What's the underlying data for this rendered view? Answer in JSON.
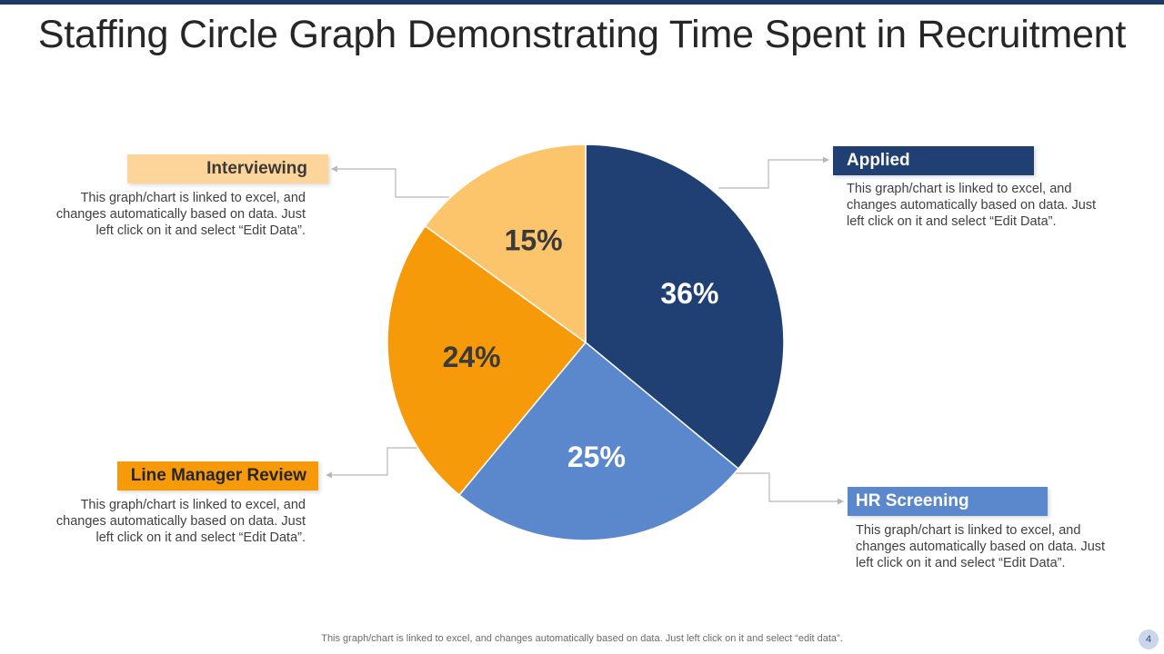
{
  "page": {
    "title": "Staffing Circle Graph Demonstrating Time Spent in Recruitment",
    "footer": "This graph/chart is linked to excel,  and changes automatically based on data. Just left click on it and select “edit data”.",
    "page_number": "4"
  },
  "colors": {
    "applied": "#203f73",
    "hr_screening": "#5b87cc",
    "line_manager_review": "#f79a0a",
    "interviewing": "#fcc46b",
    "interviewing_label_bg": "#fdd49a",
    "top_bar": "#1f3864"
  },
  "callouts": {
    "applied": {
      "label": "Applied",
      "text": "This graph/chart is linked to excel, and changes automatically based on data. Just left click on it and select “Edit Data”."
    },
    "hr_screening": {
      "label": "HR Screening",
      "text": "This graph/chart is linked to excel, and changes automatically based on data. Just left click on it and select “Edit Data”."
    },
    "line_manager_review": {
      "label": "Line Manager Review",
      "text": "This graph/chart is linked to excel, and changes automatically based on data. Just left click on it and select “Edit Data”."
    },
    "interviewing": {
      "label": "Interviewing",
      "text": "This graph/chart is linked to excel, and changes automatically based on data. Just left click on it and select “Edit Data”."
    }
  },
  "chart_data": {
    "type": "pie",
    "title": "Staffing Circle Graph Demonstrating Time Spent in Recruitment",
    "slices": [
      {
        "name": "Applied",
        "value": 36,
        "label": "36%",
        "color": "#203f73",
        "label_color": "#ffffff"
      },
      {
        "name": "HR Screening",
        "value": 25,
        "label": "25%",
        "color": "#5b87cc",
        "label_color": "#ffffff"
      },
      {
        "name": "Line Manager Review",
        "value": 24,
        "label": "24%",
        "color": "#f79a0a",
        "label_color": "#3a3a3a"
      },
      {
        "name": "Interviewing",
        "value": 15,
        "label": "15%",
        "color": "#fcc46b",
        "label_color": "#3a3a3a"
      }
    ]
  }
}
